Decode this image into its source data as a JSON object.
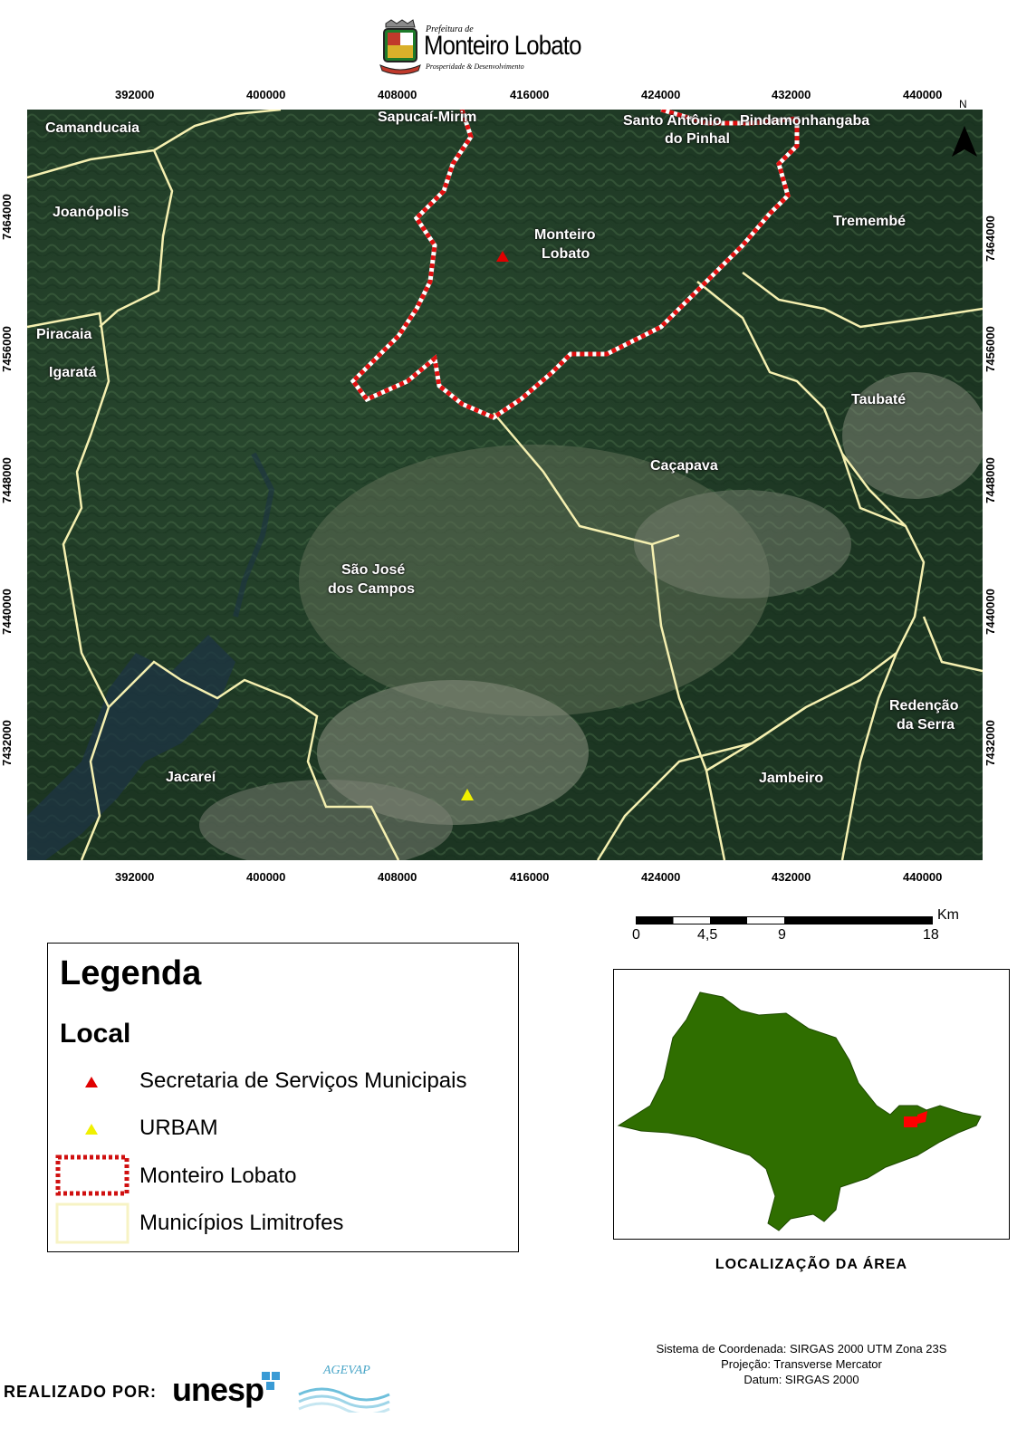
{
  "header": {
    "logo_small": "Prefeitura de",
    "logo_main": "Monteiro Lobato",
    "logo_tagline": "Prosperidade & Desenvolvimento"
  },
  "map": {
    "north_label": "N",
    "x_ticks": [
      "392000",
      "400000",
      "408000",
      "416000",
      "424000",
      "432000",
      "440000"
    ],
    "y_ticks": [
      "7464000",
      "7456000",
      "7448000",
      "7440000",
      "7432000"
    ],
    "municipalities": {
      "camanducaia": "Camanducaia",
      "sapucai": "Sapucaí-Mirim",
      "santo_antonio_1": "Santo Antônio",
      "santo_antonio_2": "do Pinhal",
      "pindamonhangaba": "Pindamonhangaba",
      "joanopolis": "Joanópolis",
      "monteiro_1": "Monteiro",
      "monteiro_2": "Lobato",
      "tremembe": "Tremembé",
      "piracaia": "Piracaia",
      "igarata": "Igaratá",
      "taubate": "Taubaté",
      "cacapava": "Caçapava",
      "sjc_1": "São José",
      "sjc_2": "dos Campos",
      "redencao_1": "Redenção",
      "redencao_2": "da Serra",
      "jacarei": "Jacareí",
      "jambeiro": "Jambeiro"
    },
    "colors": {
      "boundary": "#f5f0b0",
      "monteiro_outline": "#e01010",
      "secretaria_marker": "#e00000",
      "urbam_marker": "#f0f000"
    }
  },
  "scale": {
    "unit": "Km",
    "labels": [
      "0",
      "4,5",
      "9",
      "18"
    ]
  },
  "legend": {
    "title": "Legenda",
    "subtitle": "Local",
    "items": [
      {
        "label": "Secretaria de Serviços Municipais",
        "icon": "red-triangle"
      },
      {
        "label": "URBAM",
        "icon": "yellow-triangle"
      },
      {
        "label": "Monteiro Lobato",
        "icon": "red-dashed-rectangle"
      },
      {
        "label": "Municípios Limitrofes",
        "icon": "pale-yellow-rectangle"
      }
    ]
  },
  "inset": {
    "title": "LOCALIZAÇÃO DA ÁREA",
    "state_color": "#2f6e00",
    "highlight_color": "#ff0000"
  },
  "footer": {
    "coord_system": "Sistema de Coordenada: SIRGAS 2000 UTM Zona 23S",
    "projection": "Projeção: Transverse Mercator",
    "datum": "Datum: SIRGAS 2000",
    "made_by": "REALIZADO POR:",
    "unesp": "unesp",
    "agevap": "AGEVAP"
  }
}
